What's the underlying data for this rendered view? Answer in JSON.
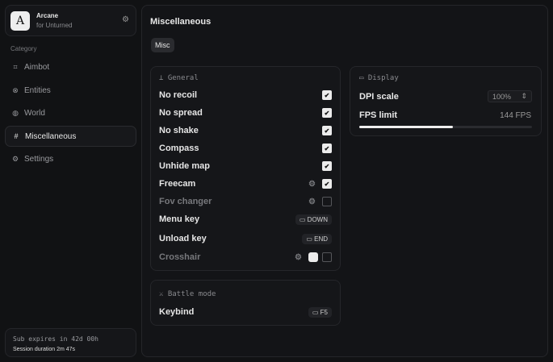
{
  "app": {
    "name": "Arcane",
    "subtitle": "for Unturned",
    "logo": "A"
  },
  "sidebar": {
    "category_label": "Category",
    "items": [
      {
        "label": "Aimbot",
        "icon": "crosshair-icon"
      },
      {
        "label": "Entities",
        "icon": "entities-icon"
      },
      {
        "label": "World",
        "icon": "globe-icon"
      },
      {
        "label": "Miscellaneous",
        "icon": "grid-icon",
        "active": true
      },
      {
        "label": "Settings",
        "icon": "gear-icon"
      }
    ]
  },
  "footer": {
    "sub": "Sub expires in 42d 00h",
    "session": "Session duration 2m 47s"
  },
  "main": {
    "title": "Miscellaneous",
    "tab": "Misc"
  },
  "general": {
    "title": "General",
    "rows": [
      {
        "label": "No recoil",
        "checked": true
      },
      {
        "label": "No spread",
        "checked": true
      },
      {
        "label": "No shake",
        "checked": true
      },
      {
        "label": "Compass",
        "checked": true
      },
      {
        "label": "Unhide map",
        "checked": true
      },
      {
        "label": "Freecam",
        "checked": true
      },
      {
        "label": "Fov changer",
        "checked": false
      },
      {
        "label": "Menu key",
        "key": "DOWN"
      },
      {
        "label": "Unload key",
        "key": "END"
      },
      {
        "label": "Crosshair",
        "checked": false
      }
    ]
  },
  "display": {
    "title": "Display",
    "dpi_label": "DPI scale",
    "dpi_value": "100%",
    "fps_label": "FPS limit",
    "fps_value": "144 FPS",
    "fps_fill_percent": 54
  },
  "battle": {
    "title": "Battle mode",
    "keybind_label": "Keybind",
    "keybind_value": "F5"
  }
}
